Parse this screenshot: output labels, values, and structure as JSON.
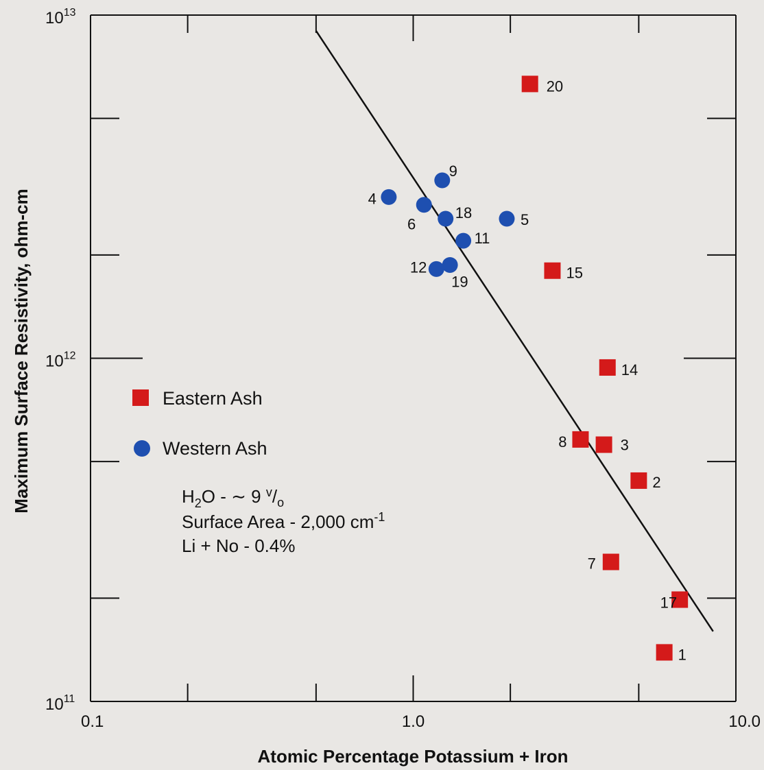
{
  "chart_data": {
    "type": "scatter",
    "title": "",
    "xlabel": "Atomic Percentage Potassium + Iron",
    "ylabel": "Maximum Surface Resistivity, ohm-cm",
    "x_scale": "log",
    "y_scale": "log",
    "xlim": [
      0.1,
      10.0
    ],
    "ylim": [
      100000000000.0,
      10000000000000.0
    ],
    "x_tick_labels": [
      {
        "value": 0.1,
        "label": "0.1"
      },
      {
        "value": 1.0,
        "label": "1.0"
      },
      {
        "value": 10.0,
        "label": "10.0"
      }
    ],
    "y_tick_labels": [
      {
        "value": 100000000000.0,
        "base": "10",
        "exp": "11"
      },
      {
        "value": 1000000000000.0,
        "base": "10",
        "exp": "12"
      },
      {
        "value": 10000000000000.0,
        "base": "10",
        "exp": "13"
      }
    ],
    "grid": false,
    "legend_position": "left-middle",
    "series": [
      {
        "name": "Eastern Ash",
        "marker": "square",
        "color": "#d41a1a",
        "points": [
          {
            "label": "20",
            "x": 2.3,
            "y": 6300000000000.0
          },
          {
            "label": "15",
            "x": 2.7,
            "y": 1800000000000.0
          },
          {
            "label": "14",
            "x": 4.0,
            "y": 940000000000.0
          },
          {
            "label": "8",
            "x": 3.3,
            "y": 580000000000.0
          },
          {
            "label": "3",
            "x": 3.9,
            "y": 560000000000.0
          },
          {
            "label": "2",
            "x": 5.0,
            "y": 440000000000.0
          },
          {
            "label": "7",
            "x": 4.1,
            "y": 255000000000.0
          },
          {
            "label": "17",
            "x": 6.7,
            "y": 198000000000.0
          },
          {
            "label": "1",
            "x": 6.0,
            "y": 139000000000.0
          }
        ]
      },
      {
        "name": "Western Ash",
        "marker": "circle",
        "color": "#1e4fb0",
        "points": [
          {
            "label": "9",
            "x": 1.23,
            "y": 3300000000000.0
          },
          {
            "label": "4",
            "x": 0.84,
            "y": 2950000000000.0
          },
          {
            "label": "6",
            "x": 1.08,
            "y": 2800000000000.0
          },
          {
            "label": "18",
            "x": 1.26,
            "y": 2550000000000.0
          },
          {
            "label": "5",
            "x": 1.95,
            "y": 2550000000000.0
          },
          {
            "label": "11",
            "x": 1.43,
            "y": 2200000000000.0
          },
          {
            "label": "19",
            "x": 1.3,
            "y": 1870000000000.0
          },
          {
            "label": "12",
            "x": 1.18,
            "y": 1820000000000.0
          }
        ]
      }
    ],
    "fit_line": {
      "from": {
        "x": 0.5,
        "y": 9000000000000.0
      },
      "to": {
        "x": 8.5,
        "y": 160000000000.0
      }
    },
    "annotations": {
      "line1": {
        "a": "H",
        "b": "2",
        "c": "O - ",
        "d": "∼",
        "e": " 9 ",
        "f": "v",
        "g": "/",
        "h": "o"
      },
      "line2": {
        "a": "Surface Area - 2,000 cm",
        "b": "-1"
      },
      "line3": "Li + No - 0.4%"
    }
  }
}
